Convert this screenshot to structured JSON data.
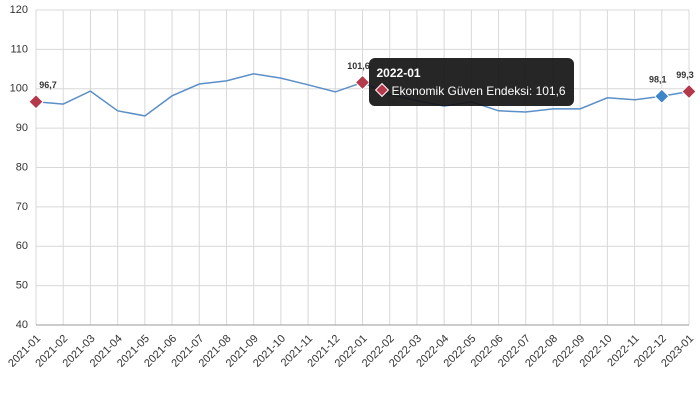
{
  "chart_data": {
    "type": "line",
    "categories": [
      "2021-01",
      "2021-02",
      "2021-03",
      "2021-04",
      "2021-05",
      "2021-06",
      "2021-07",
      "2021-08",
      "2021-09",
      "2021-10",
      "2021-11",
      "2021-12",
      "2022-01",
      "2022-02",
      "2022-03",
      "2022-04",
      "2022-05",
      "2022-06",
      "2022-07",
      "2022-08",
      "2022-09",
      "2022-10",
      "2022-11",
      "2022-12",
      "2023-01"
    ],
    "series": [
      {
        "name": "Ekonomik Güven Endeksi",
        "color": "#5b8fc7",
        "values": [
          96.7,
          96.1,
          99.4,
          94.4,
          93.1,
          98.2,
          101.2,
          102.0,
          103.8,
          102.7,
          101.0,
          99.2,
          101.6,
          98.5,
          97.0,
          95.6,
          96.7,
          94.4,
          94.1,
          94.9,
          94.9,
          97.7,
          97.2,
          98.1,
          99.3
        ],
        "value_labels": [
          "96,7",
          null,
          null,
          null,
          null,
          null,
          null,
          null,
          null,
          null,
          null,
          null,
          "101,6",
          null,
          null,
          null,
          null,
          null,
          null,
          null,
          null,
          null,
          null,
          "98,1",
          "99,3"
        ],
        "point_colors": [
          "#b3394b",
          null,
          null,
          null,
          null,
          null,
          null,
          null,
          null,
          null,
          null,
          null,
          "#b3394b",
          null,
          null,
          null,
          null,
          null,
          null,
          null,
          null,
          null,
          null,
          "#3d85c6",
          "#b3394b"
        ]
      }
    ],
    "ylim": [
      40,
      120
    ],
    "yticks": [
      40,
      50,
      60,
      70,
      80,
      90,
      100,
      110,
      120
    ],
    "grid": true,
    "tooltip": {
      "index": 12,
      "title": "2022-01",
      "text": "Ekonomik Güven Endeksi: 101,6"
    }
  }
}
